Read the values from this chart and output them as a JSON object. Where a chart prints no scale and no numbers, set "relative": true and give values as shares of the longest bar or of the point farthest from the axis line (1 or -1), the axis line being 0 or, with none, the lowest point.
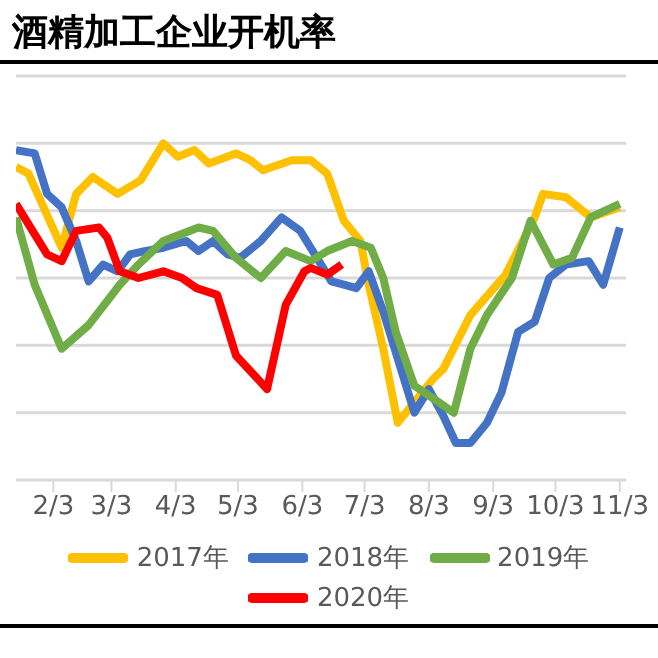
{
  "chart_data": {
    "type": "line",
    "title": "酒精加工企业开机率",
    "relative": true,
    "grid": "y",
    "legend": "bottom",
    "line_style": "solid",
    "marker": "none",
    "xlim": [
      "--01-16",
      "--11-06"
    ],
    "xticks": [
      {
        "value": "--02-03",
        "label": "2/3"
      },
      {
        "value": "--03-03",
        "label": "3/3"
      },
      {
        "value": "--04-03",
        "label": "4/3"
      },
      {
        "value": "--05-03",
        "label": "5/3"
      },
      {
        "value": "--06-03",
        "label": "6/3"
      },
      {
        "value": "--07-03",
        "label": "7/3"
      },
      {
        "value": "--08-03",
        "label": "8/3"
      },
      {
        "value": "--09-03",
        "label": "9/3"
      },
      {
        "value": "--10-03",
        "label": "10/3"
      },
      {
        "value": "--11-03",
        "label": "11/3"
      }
    ],
    "series": [
      {
        "name": "2017年",
        "color": "#ffc000",
        "x": [
          "--01-16",
          "--01-22",
          "--02-07",
          "--02-14",
          "--02-22",
          "--03-06",
          "--03-17",
          "--03-28",
          "--04-04",
          "--04-12",
          "--04-19",
          "--05-02",
          "--05-09",
          "--05-15",
          "--05-29",
          "--06-07",
          "--06-15",
          "--06-23",
          "--07-01",
          "--07-05",
          "--07-12",
          "--07-19",
          "--08-05",
          "--08-10",
          "--08-23",
          "--09-09",
          "--09-23",
          "--09-27",
          "--10-08",
          "--10-20",
          "--11-03"
        ],
        "values": [
          0.93,
          0.91,
          0.69,
          0.85,
          0.9,
          0.85,
          0.89,
          1.0,
          0.96,
          0.98,
          0.94,
          0.97,
          0.95,
          0.92,
          0.95,
          0.95,
          0.91,
          0.77,
          0.71,
          0.58,
          0.39,
          0.17,
          0.3,
          0.33,
          0.49,
          0.61,
          0.78,
          0.85,
          0.84,
          0.78,
          0.81
        ]
      },
      {
        "name": "2018年",
        "color": "#4472c4",
        "x": [
          "--01-16",
          "--01-25",
          "--01-31",
          "--02-07",
          "--02-14",
          "--02-20",
          "--02-27",
          "--03-06",
          "--03-12",
          "--03-19",
          "--03-28",
          "--04-08",
          "--04-14",
          "--04-21",
          "--04-28",
          "--05-04",
          "--05-14",
          "--05-24",
          "--06-02",
          "--06-11",
          "--06-17",
          "--06-23",
          "--06-29",
          "--07-05",
          "--07-12",
          "--07-27",
          "--08-03",
          "--08-10",
          "--08-16",
          "--08-23",
          "--08-31",
          "--09-07",
          "--09-15",
          "--09-23",
          "--09-30",
          "--10-08",
          "--10-19",
          "--10-26",
          "--11-03"
        ],
        "values": [
          0.98,
          0.97,
          0.85,
          0.81,
          0.71,
          0.59,
          0.64,
          0.62,
          0.67,
          0.68,
          0.69,
          0.71,
          0.68,
          0.71,
          0.67,
          0.66,
          0.71,
          0.78,
          0.74,
          0.65,
          0.59,
          0.58,
          0.57,
          0.62,
          0.5,
          0.2,
          0.27,
          0.19,
          0.11,
          0.11,
          0.17,
          0.26,
          0.44,
          0.47,
          0.6,
          0.64,
          0.65,
          0.58,
          0.75
        ]
      },
      {
        "name": "2019年",
        "color": "#70ad47",
        "x": [
          "--01-16",
          "--01-25",
          "--02-07",
          "--02-20",
          "--03-07",
          "--03-16",
          "--03-28",
          "--04-14",
          "--04-21",
          "--05-02",
          "--05-14",
          "--05-26",
          "--06-07",
          "--06-15",
          "--06-27",
          "--07-06",
          "--07-12",
          "--07-18",
          "--07-27",
          "--08-08",
          "--08-15",
          "--08-23",
          "--08-31",
          "--09-12",
          "--09-21",
          "--10-02",
          "--10-11",
          "--10-20",
          "--11-03"
        ],
        "values": [
          0.78,
          0.58,
          0.39,
          0.46,
          0.58,
          0.64,
          0.71,
          0.75,
          0.74,
          0.66,
          0.6,
          0.68,
          0.65,
          0.68,
          0.71,
          0.69,
          0.6,
          0.44,
          0.28,
          0.23,
          0.2,
          0.39,
          0.49,
          0.6,
          0.77,
          0.64,
          0.66,
          0.78,
          0.82
        ]
      },
      {
        "name": "2020年",
        "color": "#ff0000",
        "x": [
          "--01-16",
          "--01-20",
          "--01-31",
          "--02-07",
          "--02-14",
          "--02-25",
          "--03-01",
          "--03-07",
          "--03-16",
          "--03-28",
          "--04-06",
          "--04-13",
          "--04-23",
          "--05-02",
          "--05-17",
          "--05-26",
          "--06-04",
          "--06-07",
          "--06-15",
          "--06-22"
        ],
        "values": [
          0.82,
          0.78,
          0.67,
          0.65,
          0.74,
          0.75,
          0.72,
          0.62,
          0.6,
          0.62,
          0.6,
          0.57,
          0.55,
          0.37,
          0.27,
          0.52,
          0.62,
          0.63,
          0.61,
          0.64
        ]
      }
    ]
  }
}
